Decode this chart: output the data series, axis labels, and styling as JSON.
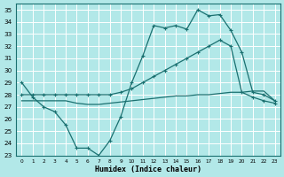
{
  "xlabel": "Humidex (Indice chaleur)",
  "bg_color": "#b2e8e8",
  "grid_color": "#ffffff",
  "line_color": "#1a7070",
  "xlim": [
    -0.5,
    23.5
  ],
  "ylim": [
    23,
    35.5
  ],
  "yticks": [
    23,
    24,
    25,
    26,
    27,
    28,
    29,
    30,
    31,
    32,
    33,
    34,
    35
  ],
  "xticks": [
    0,
    1,
    2,
    3,
    4,
    5,
    6,
    7,
    8,
    9,
    10,
    11,
    12,
    13,
    14,
    15,
    16,
    17,
    18,
    19,
    20,
    21,
    22,
    23
  ],
  "line1_x": [
    0,
    1,
    2,
    3,
    4,
    5,
    6,
    7,
    8,
    9,
    10,
    11,
    12,
    13,
    14,
    15,
    16,
    17,
    18,
    19,
    20,
    21,
    22,
    23
  ],
  "line1_y": [
    29.0,
    27.8,
    27.0,
    26.6,
    25.5,
    23.6,
    23.6,
    23.0,
    24.2,
    26.2,
    29.0,
    31.2,
    33.7,
    33.5,
    33.7,
    33.4,
    35.0,
    34.5,
    34.6,
    33.3,
    31.5,
    28.2,
    28.0,
    27.5
  ],
  "line2_x": [
    0,
    1,
    2,
    3,
    4,
    5,
    6,
    7,
    8,
    9,
    10,
    11,
    12,
    13,
    14,
    15,
    16,
    17,
    18,
    19,
    20,
    21,
    22,
    23
  ],
  "line2_y": [
    28.0,
    28.0,
    28.0,
    28.0,
    28.0,
    28.0,
    28.0,
    28.0,
    28.0,
    28.2,
    28.5,
    29.0,
    29.5,
    30.0,
    30.5,
    31.0,
    31.5,
    32.0,
    32.5,
    32.0,
    28.2,
    27.8,
    27.5,
    27.3
  ],
  "line3_x": [
    0,
    1,
    2,
    3,
    4,
    5,
    6,
    7,
    8,
    9,
    10,
    11,
    12,
    13,
    14,
    15,
    16,
    17,
    18,
    19,
    20,
    21,
    22,
    23
  ],
  "line3_y": [
    27.5,
    27.5,
    27.5,
    27.5,
    27.5,
    27.3,
    27.2,
    27.2,
    27.3,
    27.4,
    27.5,
    27.6,
    27.7,
    27.8,
    27.9,
    27.9,
    28.0,
    28.0,
    28.1,
    28.2,
    28.2,
    28.3,
    28.3,
    27.5
  ]
}
